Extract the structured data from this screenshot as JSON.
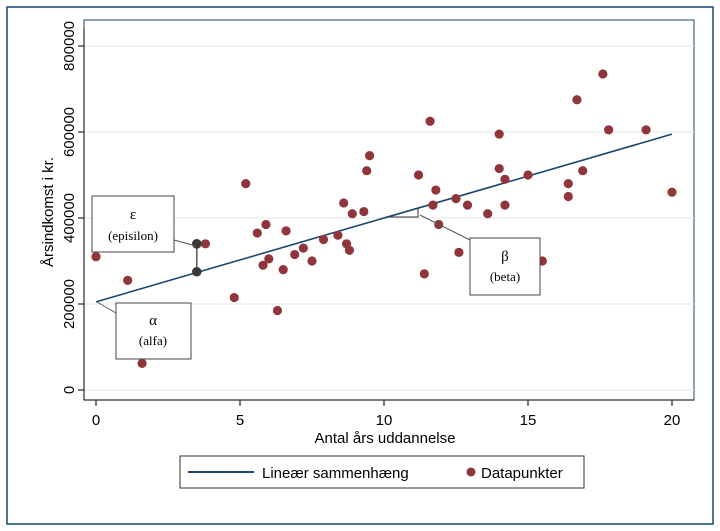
{
  "chart_data": {
    "type": "scatter",
    "xlabel": "Antal års uddannelse",
    "ylabel": "Årsindkomst i kr.",
    "xlim": [
      0,
      20
    ],
    "ylim": [
      0,
      800000
    ],
    "xticks": [
      "0",
      "5",
      "10",
      "15",
      "20"
    ],
    "yticks": [
      "0",
      "200000",
      "400000",
      "600000",
      "800000"
    ],
    "grid": "horizontal",
    "legend_position": "bottom",
    "colors": {
      "line": "#1a476f",
      "points": "#90353b",
      "frame": "#1a476f",
      "highlight_points": "#3a3a3a"
    },
    "series": [
      {
        "name": "Datapunkter",
        "points": [
          [
            0,
            310000
          ],
          [
            1.1,
            255000
          ],
          [
            1.6,
            62000
          ],
          [
            3.8,
            340000
          ],
          [
            4.8,
            215000
          ],
          [
            5.2,
            480000
          ],
          [
            5.6,
            365000
          ],
          [
            5.8,
            290000
          ],
          [
            5.9,
            385000
          ],
          [
            6.0,
            305000
          ],
          [
            6.3,
            185000
          ],
          [
            6.5,
            280000
          ],
          [
            6.6,
            370000
          ],
          [
            6.9,
            315000
          ],
          [
            7.2,
            330000
          ],
          [
            7.5,
            300000
          ],
          [
            7.9,
            350000
          ],
          [
            8.4,
            360000
          ],
          [
            8.6,
            435000
          ],
          [
            8.7,
            340000
          ],
          [
            8.8,
            325000
          ],
          [
            8.9,
            410000
          ],
          [
            9.3,
            415000
          ],
          [
            9.4,
            510000
          ],
          [
            9.5,
            545000
          ],
          [
            11.2,
            500000
          ],
          [
            11.4,
            270000
          ],
          [
            11.6,
            625000
          ],
          [
            11.7,
            430000
          ],
          [
            11.8,
            465000
          ],
          [
            11.9,
            385000
          ],
          [
            12.5,
            445000
          ],
          [
            12.6,
            320000
          ],
          [
            12.9,
            430000
          ],
          [
            13.6,
            410000
          ],
          [
            14.0,
            515000
          ],
          [
            14.0,
            595000
          ],
          [
            14.2,
            490000
          ],
          [
            14.2,
            430000
          ],
          [
            15.0,
            500000
          ],
          [
            15.5,
            300000
          ],
          [
            16.4,
            480000
          ],
          [
            16.4,
            450000
          ],
          [
            16.7,
            675000
          ],
          [
            16.9,
            510000
          ],
          [
            17.6,
            735000
          ],
          [
            17.8,
            605000
          ],
          [
            19.1,
            605000
          ],
          [
            20.0,
            460000
          ]
        ]
      }
    ],
    "fit_line": {
      "name": "Lineær sammenhæng",
      "x": [
        0,
        20
      ],
      "y": [
        205000,
        595000
      ]
    },
    "highlight_points": [
      [
        3.5,
        340000
      ],
      [
        3.5,
        275000
      ]
    ],
    "annotations": [
      {
        "symbol": "ε",
        "label": "(episilon)"
      },
      {
        "symbol": "α",
        "label": "(alfa)"
      },
      {
        "symbol": "β",
        "label": "(beta)"
      }
    ]
  }
}
